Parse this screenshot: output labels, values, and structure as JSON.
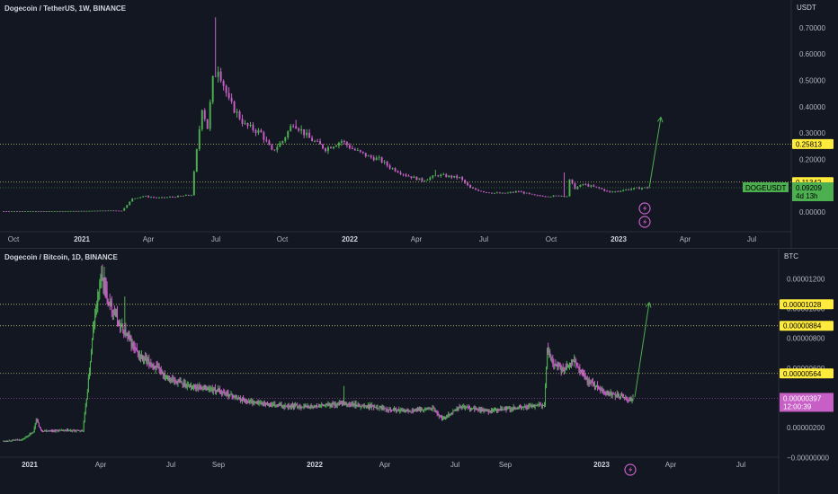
{
  "chart_data": [
    {
      "type": "candlestick",
      "title": "Dogecoin / TetherUS, 1W, BINANCE",
      "unit": "USDT",
      "yticks": [
        "0.70000",
        "0.60000",
        "0.50000",
        "0.40000",
        "0.30000",
        "0.20000",
        "0.10000",
        "0.00000"
      ],
      "xticks": [
        "Oct",
        "2021",
        "Apr",
        "Jul",
        "Oct",
        "2022",
        "Apr",
        "Jul",
        "Oct",
        "2023",
        "Apr",
        "Jul"
      ],
      "bold_xticks": [
        "2021",
        "2022",
        "2023"
      ],
      "levels": [
        {
          "label": "0.25813",
          "value": 0.25813,
          "color": "#ffeb3b"
        },
        {
          "label": "0.11342",
          "value": 0.11342,
          "color": "#ffeb3b"
        }
      ],
      "last_price": {
        "symbol": "DOGEUSDT",
        "value": "0.09209",
        "countdown": "4d 13h",
        "color": "#4caf50"
      },
      "up_color": "#4caf50",
      "down_color": "#c75fc6",
      "projection_target": 0.36,
      "path": [
        [
          0,
          0.0028
        ],
        [
          15,
          0.003
        ],
        [
          30,
          0.004
        ],
        [
          40,
          0.0057
        ],
        [
          44,
          0.0045
        ],
        [
          48,
          0.05
        ],
        [
          52,
          0.06
        ],
        [
          58,
          0.053
        ],
        [
          64,
          0.058
        ],
        [
          70,
          0.065
        ],
        [
          74,
          0.4
        ],
        [
          76,
          0.32
        ],
        [
          78,
          0.5
        ],
        [
          80,
          0.55
        ],
        [
          84,
          0.42
        ],
        [
          90,
          0.33
        ],
        [
          96,
          0.3
        ],
        [
          100,
          0.23
        ],
        [
          104,
          0.27
        ],
        [
          108,
          0.34
        ],
        [
          114,
          0.28
        ],
        [
          120,
          0.24
        ],
        [
          126,
          0.27
        ],
        [
          130,
          0.24
        ],
        [
          136,
          0.21
        ],
        [
          140,
          0.2
        ],
        [
          144,
          0.17
        ],
        [
          150,
          0.14
        ],
        [
          156,
          0.12
        ],
        [
          162,
          0.14
        ],
        [
          166,
          0.135
        ],
        [
          170,
          0.13
        ],
        [
          174,
          0.09
        ],
        [
          180,
          0.075
        ],
        [
          186,
          0.07
        ],
        [
          192,
          0.078
        ],
        [
          198,
          0.062
        ],
        [
          204,
          0.06
        ],
        [
          208,
          0.062
        ],
        [
          210,
          0.06
        ],
        [
          211,
          0.12
        ],
        [
          213,
          0.09
        ],
        [
          216,
          0.105
        ],
        [
          222,
          0.09
        ],
        [
          226,
          0.075
        ],
        [
          232,
          0.085
        ],
        [
          238,
          0.092
        ],
        [
          240,
          0.092
        ]
      ],
      "spikes": [
        [
          79,
          0.74
        ],
        [
          91,
          0.33
        ],
        [
          109,
          0.35
        ],
        [
          161,
          0.16
        ],
        [
          209,
          0.15
        ]
      ]
    },
    {
      "type": "candlestick",
      "title": "Dogecoin / Bitcoin, 1D, BINANCE",
      "unit": "BTC",
      "yticks": [
        "0.00001200",
        "0.00001000",
        "0.00000800",
        "0.00000600",
        "0.00000400",
        "0.00000200",
        "−0.00000000"
      ],
      "xticks": [
        "2021",
        "Apr",
        "Jul",
        "Sep",
        "2022",
        "Apr",
        "Jul",
        "Sep",
        "2023",
        "Apr",
        "Jul"
      ],
      "bold_xticks": [
        "2021",
        "2022",
        "2023"
      ],
      "levels": [
        {
          "label": "0.00001028",
          "value": 1.028e-05,
          "color": "#ffeb3b"
        },
        {
          "label": "0.00000884",
          "value": 8.84e-06,
          "color": "#ffeb3b"
        },
        {
          "label": "0.00000564",
          "value": 5.64e-06,
          "color": "#ffeb3b"
        }
      ],
      "last_price": {
        "symbol": "",
        "value": "0.00000397",
        "countdown": "12:00:39",
        "color": "#c75fc6"
      },
      "up_color": "#4caf50",
      "down_color": "#c75fc6",
      "projection_target": 1.04e-05,
      "path": [
        [
          0,
          1.1e-06
        ],
        [
          20,
          1.2e-06
        ],
        [
          32,
          1.7e-06
        ],
        [
          35,
          2.6e-06
        ],
        [
          40,
          1.8e-06
        ],
        [
          60,
          1.8e-06
        ],
        [
          85,
          1.8e-06
        ],
        [
          90,
          4.5e-06
        ],
        [
          96,
          8.5e-06
        ],
        [
          104,
          1.22e-05
        ],
        [
          110,
          1.1e-05
        ],
        [
          118,
          9.8e-06
        ],
        [
          125,
          8.8e-06
        ],
        [
          132,
          8.2e-06
        ],
        [
          145,
          6.8e-06
        ],
        [
          160,
          6.2e-06
        ],
        [
          180,
          5.2e-06
        ],
        [
          200,
          4.8e-06
        ],
        [
          230,
          4.5e-06
        ],
        [
          260,
          3.8e-06
        ],
        [
          290,
          3.5e-06
        ],
        [
          330,
          3.4e-06
        ],
        [
          360,
          3.6e-06
        ],
        [
          400,
          3.4e-06
        ],
        [
          430,
          3.1e-06
        ],
        [
          460,
          3.3e-06
        ],
        [
          470,
          2.6e-06
        ],
        [
          490,
          3.4e-06
        ],
        [
          520,
          3.1e-06
        ],
        [
          560,
          3.4e-06
        ],
        [
          580,
          3.5e-06
        ],
        [
          583,
          7.2e-06
        ],
        [
          590,
          6.3e-06
        ],
        [
          600,
          5.8e-06
        ],
        [
          610,
          6.6e-06
        ],
        [
          625,
          5.2e-06
        ],
        [
          645,
          4.4e-06
        ],
        [
          660,
          4.1e-06
        ],
        [
          670,
          3.9e-06
        ],
        [
          675,
          4e-06
        ]
      ],
      "spikes": [
        [
          108,
          1.28e-05
        ],
        [
          130,
          1.08e-05
        ],
        [
          365,
          4.8e-06
        ],
        [
          584,
          7.7e-06
        ]
      ]
    }
  ]
}
